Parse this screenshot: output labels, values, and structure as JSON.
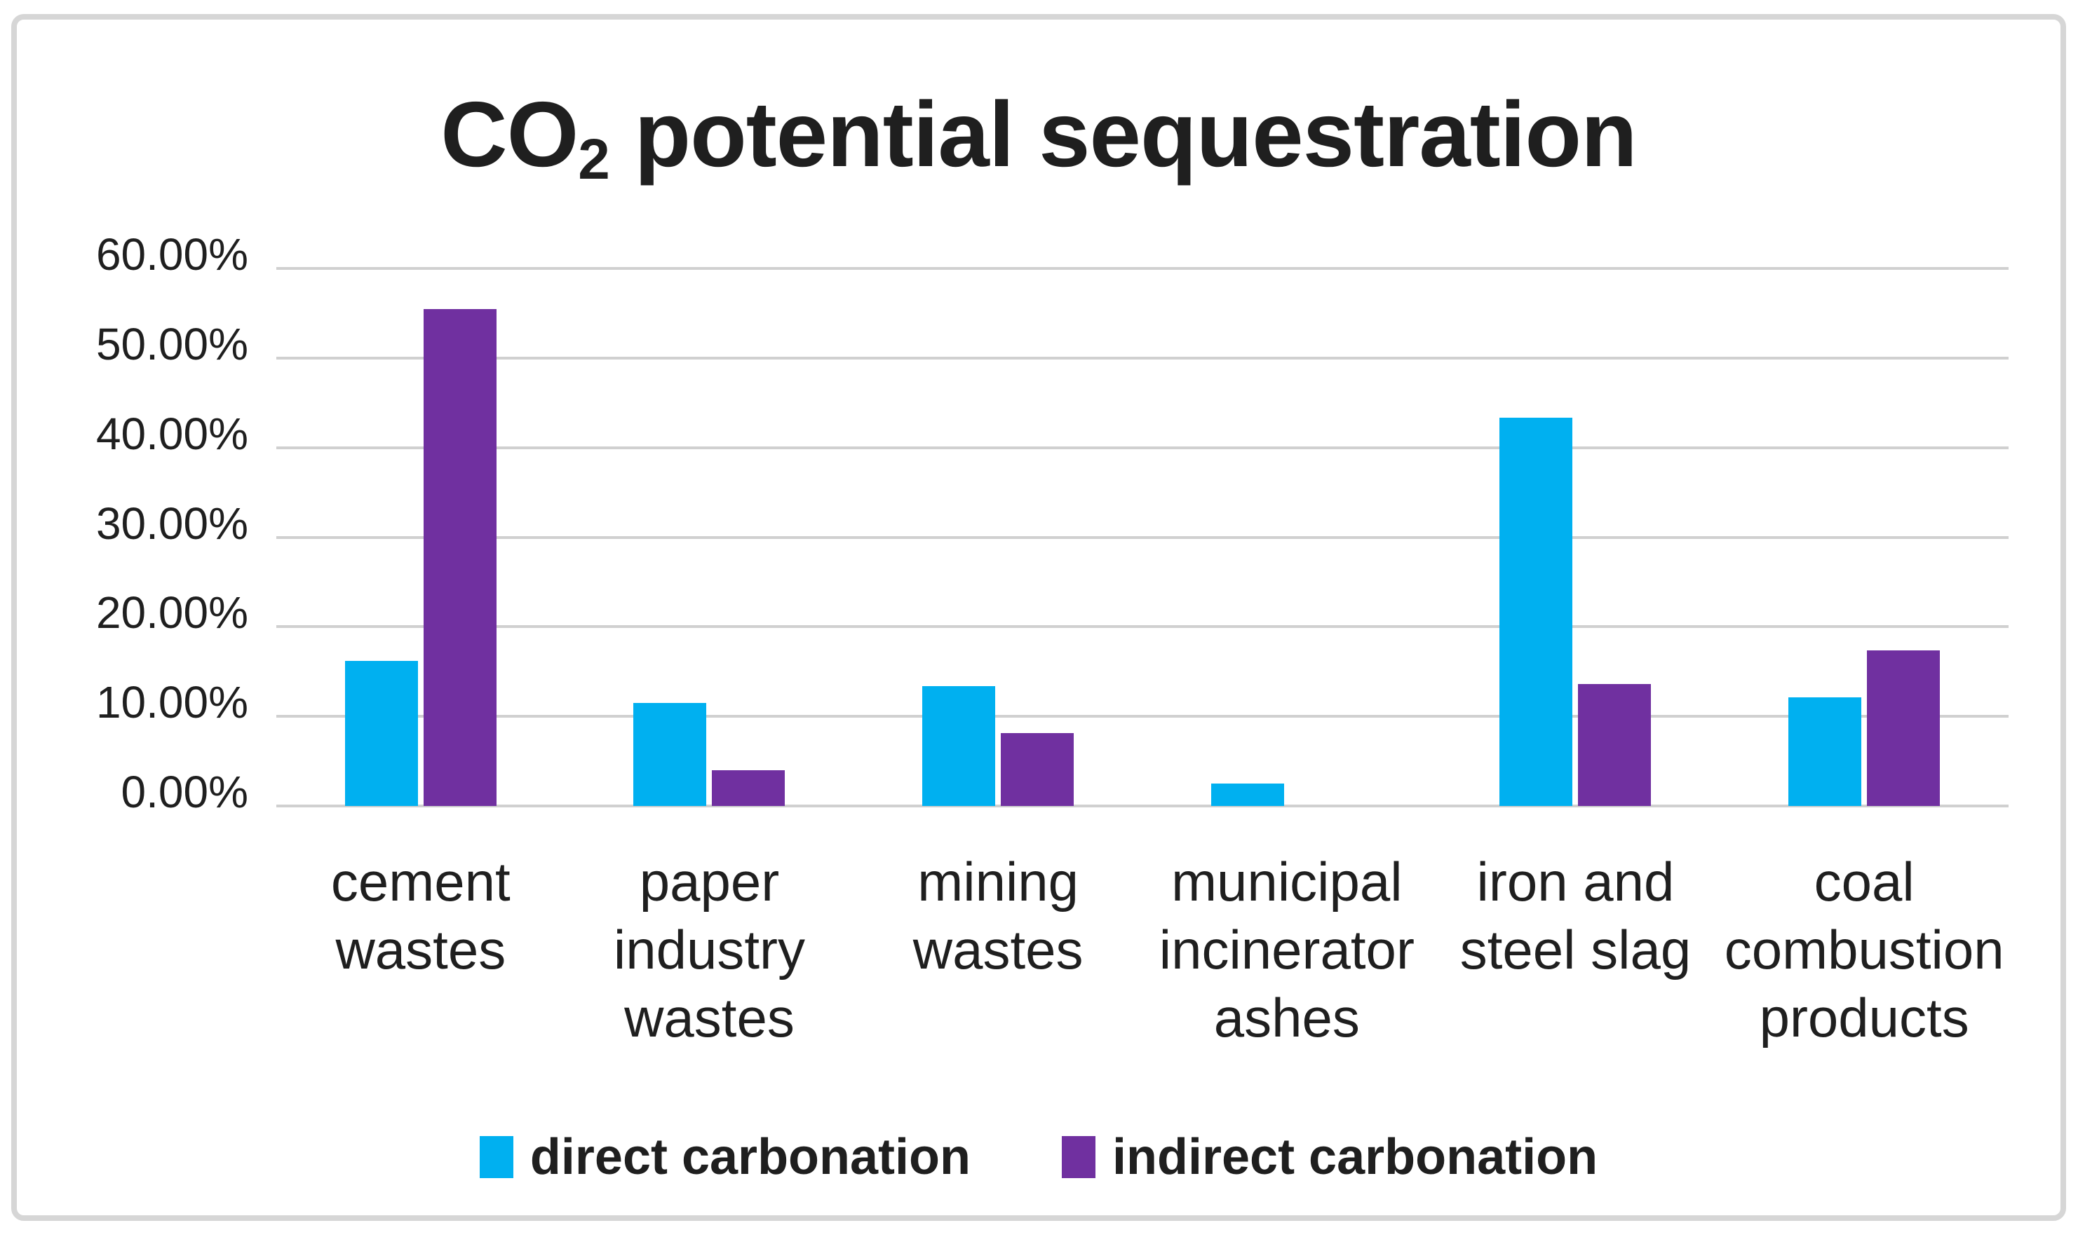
{
  "chart_data": {
    "type": "bar",
    "title_text": "CO2 potential sequestration",
    "title_parts": {
      "pre": "CO",
      "sub": "2",
      "post": " potential sequestration"
    },
    "categories": [
      {
        "id": "cement-wastes",
        "label": "cement wastes",
        "lines": [
          "cement",
          "wastes"
        ]
      },
      {
        "id": "paper-industry-wastes",
        "label": "paper industry wastes",
        "lines": [
          "paper",
          "industry",
          "wastes"
        ]
      },
      {
        "id": "mining-wastes",
        "label": "mining wastes",
        "lines": [
          "mining",
          "wastes"
        ]
      },
      {
        "id": "municipal-incinerator-ashes",
        "label": "municipal incinerator ashes",
        "lines": [
          "municipal",
          "incinerator",
          "ashes"
        ]
      },
      {
        "id": "iron-and-steel-slag",
        "label": "iron and steel slag",
        "lines": [
          "iron and",
          "steel slag"
        ]
      },
      {
        "id": "coal-combustion-products",
        "label": "coal combustion products",
        "lines": [
          "coal",
          "combustion",
          "products"
        ]
      }
    ],
    "series": [
      {
        "id": "direct",
        "name": "direct carbonation",
        "color": "#00B0F0",
        "values_pct": [
          16.2,
          11.5,
          13.4,
          2.5,
          43.3,
          12.1
        ]
      },
      {
        "id": "indirect",
        "name": "indirect carbonation",
        "color": "#7030A0",
        "values_pct": [
          55.5,
          4.0,
          8.1,
          0,
          13.6,
          17.4
        ]
      }
    ],
    "y_axis": {
      "min": 0,
      "max": 60,
      "unit": "%",
      "tick_values": [
        60,
        50,
        40,
        30,
        20,
        10,
        0
      ],
      "tick_labels": [
        "60.00%",
        "50.00%",
        "40.00%",
        "30.00%",
        "20.00%",
        "10.00%",
        "0.00%"
      ]
    },
    "grid": true,
    "legend_position": "bottom",
    "colors": {
      "grid": "#D0D0D0",
      "text": "#1F1F1F",
      "frame_border": "#D6D6D6",
      "background": "#FFFFFF"
    }
  }
}
